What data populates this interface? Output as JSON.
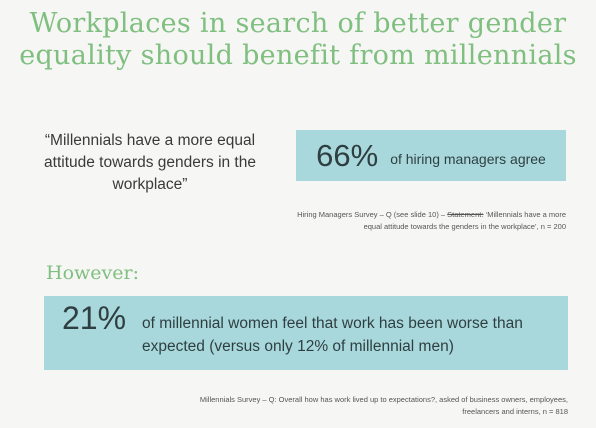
{
  "title_line1": "Workplaces in search of better gender",
  "title_line2": "equality should benefit from millennials",
  "quote_lines": [
    "“Millennials have a more equal",
    "attitude towards genders in the",
    "workplace”"
  ],
  "stat1": {
    "value": "66%",
    "text": "of hiring managers agree"
  },
  "source1": {
    "pre": "Hiring Managers Survey – Q (see slide 10) – ",
    "struck": "Statement:",
    "post": " ‘Millennials have a more",
    "line2": "equal attitude towards the genders in the workplace’, n = 200"
  },
  "however": "However:",
  "stat2": {
    "value": "21%",
    "line1": "of millennial women feel that work has been worse than",
    "line2": "expected (versus only 12% of millennial men)"
  },
  "source2": {
    "line1": "Millennials Survey – Q: Overall how has work lived up to expectations?, asked of business owners, employees,",
    "line2": "freelancers and interns, n = 818"
  }
}
